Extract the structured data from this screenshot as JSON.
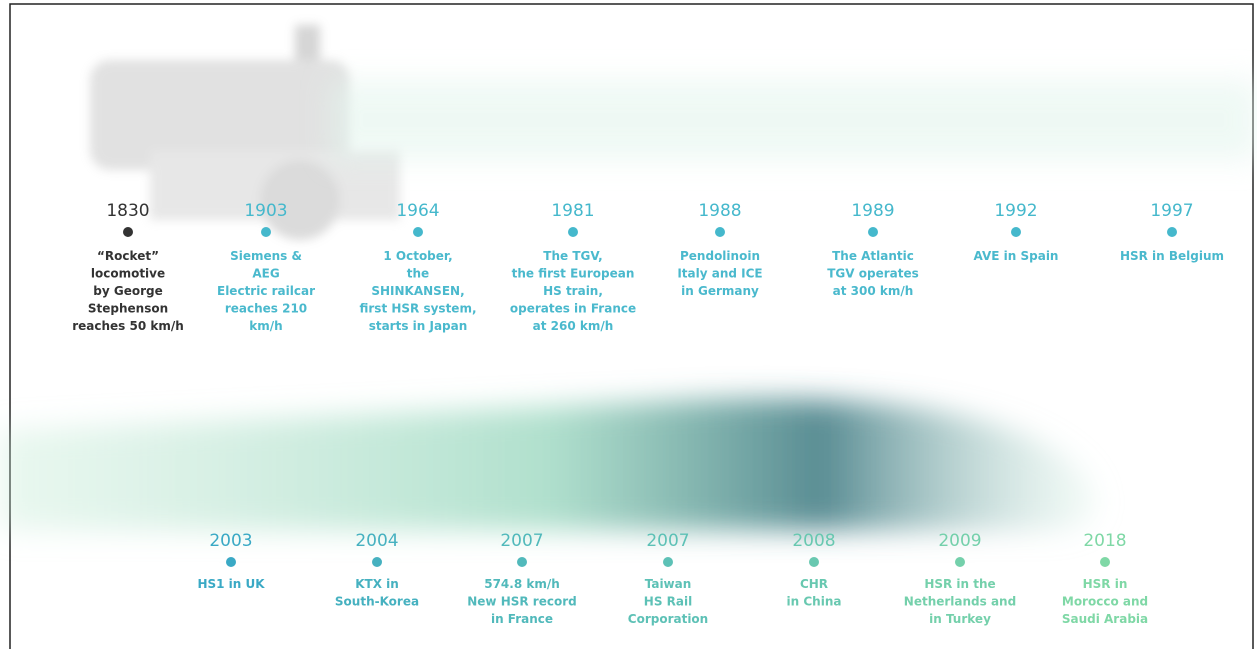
{
  "timeline_top": [
    {
      "year": "1830",
      "text": [
        "“Rocket”",
        "locomotive",
        "by George",
        "Stephenson",
        "reaches 50 km/h"
      ]
    },
    {
      "year": "1903",
      "text": [
        "Siemens &",
        "AEG",
        "Electric railcar",
        "reaches 210",
        "km/h"
      ]
    },
    {
      "year": "1964",
      "text": [
        "1 October,",
        "the",
        "SHINKANSEN,",
        "first HSR system,",
        "starts in Japan"
      ]
    },
    {
      "year": "1981",
      "text": [
        "The TGV,",
        "the first European",
        "HS train,",
        "operates in France",
        "at 260 km/h"
      ]
    },
    {
      "year": "1988",
      "text": [
        "Pendolinoin",
        "Italy and ICE",
        "in Germany"
      ]
    },
    {
      "year": "1989",
      "text": [
        "The Atlantic",
        "TGV operates",
        "at 300 km/h"
      ]
    },
    {
      "year": "1992",
      "text": [
        "AVE in Spain"
      ]
    },
    {
      "year": "1997",
      "text": [
        "HSR in Belgium"
      ]
    }
  ],
  "timeline_bottom": [
    {
      "year": "2003",
      "text": [
        "HS1 in UK"
      ]
    },
    {
      "year": "2004",
      "text": [
        "KTX in",
        "South-Korea"
      ]
    },
    {
      "year": "2007",
      "text": [
        "574.8 km/h",
        "New HSR record",
        "in France"
      ]
    },
    {
      "year": "2007",
      "text": [
        "Taiwan",
        "HS Rail",
        "Corporation"
      ]
    },
    {
      "year": "2008",
      "text": [
        "CHR",
        "in China"
      ]
    },
    {
      "year": "2009",
      "text": [
        "HSR in the",
        "Netherlands and",
        "in Turkey"
      ]
    },
    {
      "year": "2018",
      "text": [
        "HSR in",
        "Morocco and",
        "Saudi Arabia"
      ]
    }
  ]
}
